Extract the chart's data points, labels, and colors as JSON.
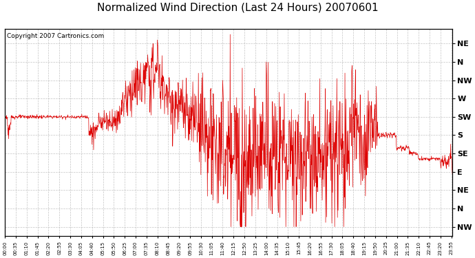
{
  "title": "Normalized Wind Direction (Last 24 Hours) 20070601",
  "copyright_text": "Copyright 2007 Cartronics.com",
  "line_color": "#dd0000",
  "background_color": "#ffffff",
  "plot_bg_color": "#ffffff",
  "grid_color": "#aaaaaa",
  "ytick_labels": [
    "NE",
    "N",
    "NW",
    "W",
    "SW",
    "S",
    "SE",
    "E",
    "NE",
    "N",
    "NW"
  ],
  "ytick_values": [
    11,
    10,
    9,
    8,
    7,
    6,
    5,
    4,
    3,
    2,
    1
  ],
  "ylim": [
    0.5,
    11.8
  ],
  "xtick_labels": [
    "00:00",
    "00:35",
    "01:10",
    "01:45",
    "02:20",
    "02:55",
    "03:30",
    "04:05",
    "04:40",
    "05:15",
    "05:50",
    "06:25",
    "07:00",
    "07:35",
    "08:10",
    "08:45",
    "09:20",
    "09:55",
    "10:30",
    "11:05",
    "11:40",
    "12:15",
    "12:50",
    "13:25",
    "14:00",
    "14:35",
    "15:10",
    "15:45",
    "16:20",
    "16:55",
    "17:30",
    "18:05",
    "18:40",
    "19:15",
    "19:50",
    "20:25",
    "21:00",
    "21:35",
    "22:10",
    "22:45",
    "23:20",
    "23:55"
  ],
  "line_width": 0.5,
  "title_fontsize": 11
}
